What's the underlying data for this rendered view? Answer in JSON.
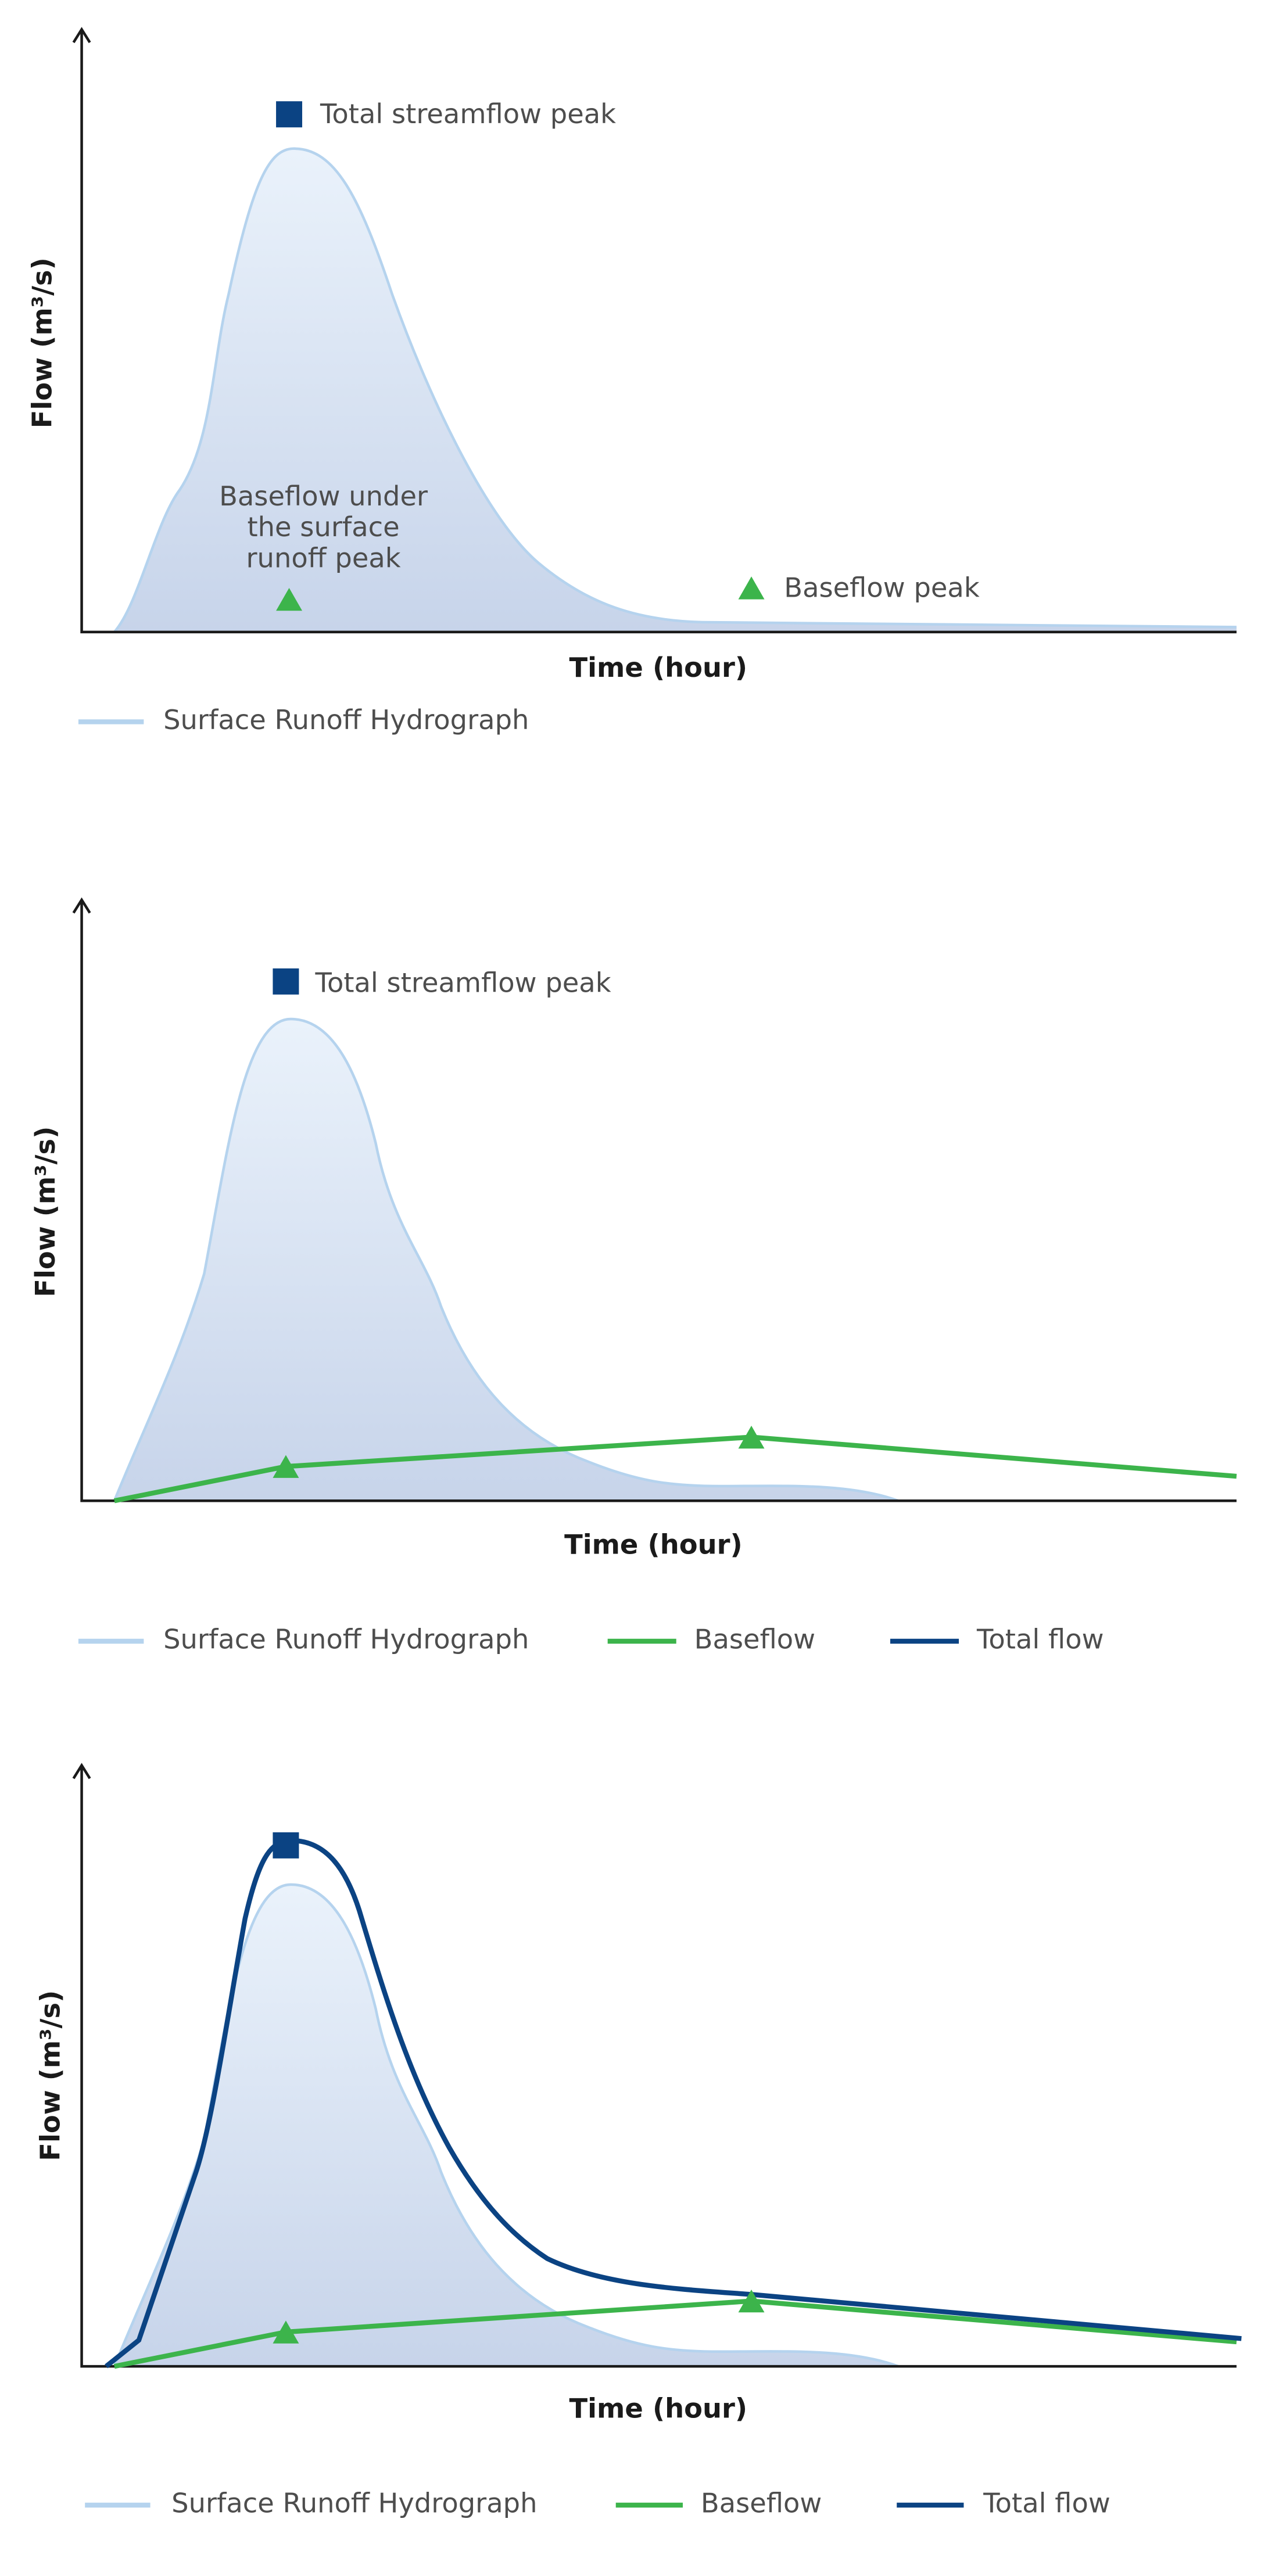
{
  "panels": [
    {
      "y_axis_label": "Flow (m³/s)",
      "x_axis_label": "Time (hour)",
      "annotations": [
        [
          "Total streamflow peak"
        ],
        [
          "Baseflow under",
          "the surface",
          "runoff peak"
        ],
        [
          "Baseflow peak"
        ]
      ],
      "legend": [
        "Surface Runoff Hydrograph"
      ]
    },
    {
      "y_axis_label": "Flow (m³/s)",
      "x_axis_label": "Time (hour)",
      "annotations": [
        [
          "Total streamflow peak"
        ]
      ],
      "legend": [
        "Surface Runoff Hydrograph",
        "Baseflow",
        "Total flow"
      ]
    },
    {
      "y_axis_label": "Flow (m³/s)",
      "x_axis_label": "Time (hour)",
      "legend": [
        "Surface Runoff Hydrograph",
        "Baseflow",
        "Total flow"
      ]
    }
  ]
}
